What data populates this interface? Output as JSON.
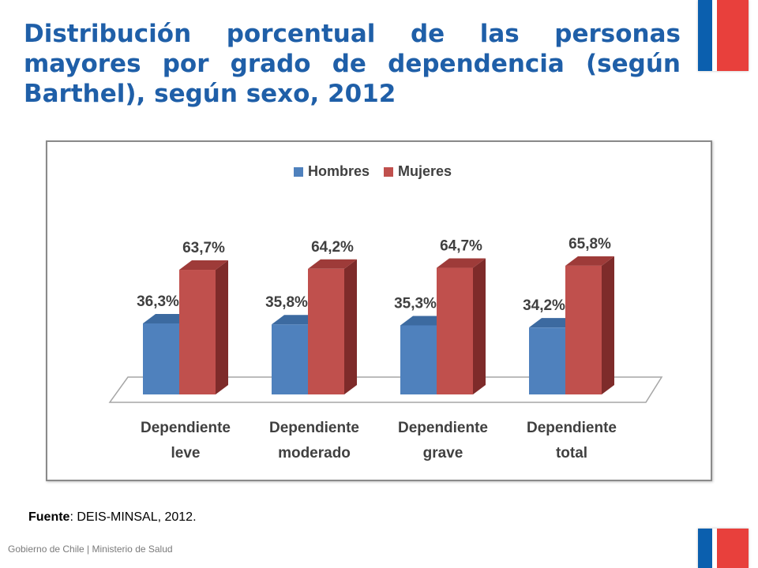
{
  "title": "Distribución porcentual de las personas mayores por grado de dependencia (según Barthel), según sexo, 2012",
  "source": {
    "label": "Fuente",
    "text": ": DEIS-MINSAL, 2012."
  },
  "footer": "Gobierno de Chile | Ministerio de Salud",
  "colors": {
    "title": "#1f5fa8",
    "hombres": "#4f81bd",
    "mujeres": "#c0504d",
    "flag_blue": "#0b5fae",
    "flag_red": "#e8403c"
  },
  "chart_data": {
    "type": "bar",
    "categories": [
      [
        "Dependiente",
        "leve"
      ],
      [
        "Dependiente",
        "moderado"
      ],
      [
        "Dependiente",
        "grave"
      ],
      [
        "Dependiente",
        "total"
      ]
    ],
    "series": [
      {
        "name": "Hombres",
        "values": [
          36.3,
          35.8,
          35.3,
          34.2
        ],
        "labels": [
          "36,3%",
          "35,8%",
          "35,3%",
          "34,2%"
        ]
      },
      {
        "name": "Mujeres",
        "values": [
          63.7,
          64.2,
          64.7,
          65.8
        ],
        "labels": [
          "63,7%",
          "64,2%",
          "64,7%",
          "65,8%"
        ]
      }
    ],
    "legend_position": "top",
    "grid": false
  }
}
